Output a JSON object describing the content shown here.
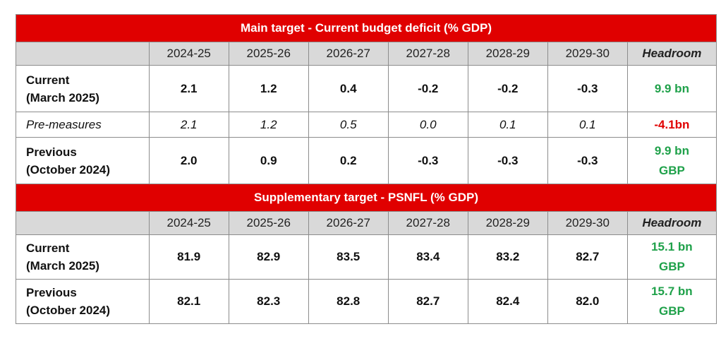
{
  "chart_data": [
    {
      "type": "table",
      "title": "Main target - Current budget deficit (% GDP)",
      "columns": [
        "2024-25",
        "2025-26",
        "2026-27",
        "2027-28",
        "2028-29",
        "2029-30",
        "Headroom"
      ],
      "rows": [
        {
          "label_line1": "Current",
          "label_line2": "(March 2025)",
          "style": "bold",
          "values": [
            "2.1",
            "1.2",
            "0.4",
            "-0.2",
            "-0.2",
            "-0.3"
          ],
          "headroom_line1": "9.9 bn",
          "headroom_line2": "",
          "headroom_color": "#1fa14a"
        },
        {
          "label_line1": "Pre-measures",
          "label_line2": "",
          "style": "italic",
          "values": [
            "2.1",
            "1.2",
            "0.5",
            "0.0",
            "0.1",
            "0.1"
          ],
          "headroom_line1": "-4.1bn",
          "headroom_line2": "",
          "headroom_color": "#e00000"
        },
        {
          "label_line1": "Previous",
          "label_line2": "(October 2024)",
          "style": "bold",
          "values": [
            "2.0",
            "0.9",
            "0.2",
            "-0.3",
            "-0.3",
            "-0.3"
          ],
          "headroom_line1": "9.9 bn",
          "headroom_line2": "GBP",
          "headroom_color": "#1fa14a"
        }
      ]
    },
    {
      "type": "table",
      "title": "Supplementary target - PSNFL (% GDP)",
      "columns": [
        "2024-25",
        "2025-26",
        "2026-27",
        "2027-28",
        "2028-29",
        "2029-30",
        "Headroom"
      ],
      "rows": [
        {
          "label_line1": "Current",
          "label_line2": "(March 2025)",
          "style": "bold",
          "values": [
            "81.9",
            "82.9",
            "83.5",
            "83.4",
            "83.2",
            "82.7"
          ],
          "headroom_line1": "15.1 bn",
          "headroom_line2": "GBP",
          "headroom_color": "#1fa14a"
        },
        {
          "label_line1": "Previous",
          "label_line2": "(October 2024)",
          "style": "bold",
          "values": [
            "82.1",
            "82.3",
            "82.8",
            "82.7",
            "82.4",
            "82.0"
          ],
          "headroom_line1": "15.7 bn",
          "headroom_line2": "GBP",
          "headroom_color": "#1fa14a"
        }
      ]
    }
  ],
  "colors": {
    "band": "#e00000",
    "header_bg": "#d9d9d9",
    "positive": "#1fa14a",
    "negative": "#e00000"
  }
}
